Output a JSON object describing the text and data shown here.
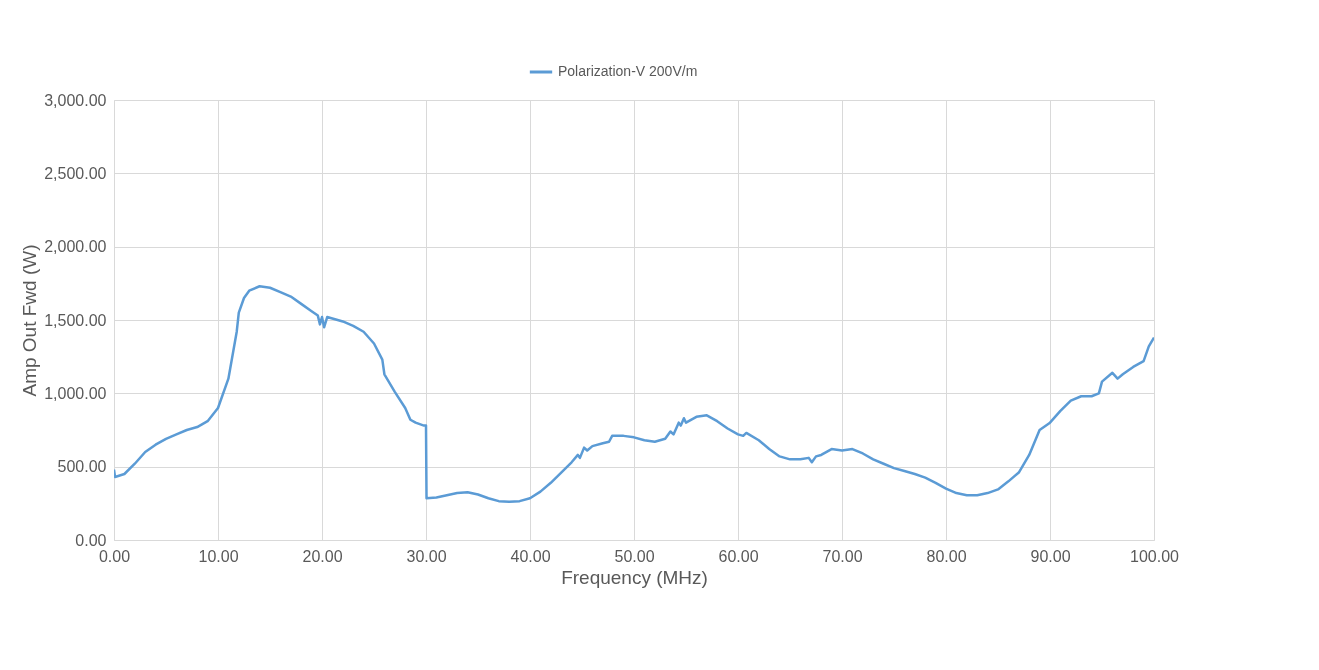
{
  "chart_data": {
    "type": "line",
    "xlabel": "Frequency (MHz)",
    "ylabel": "Amp Out Fwd (W)",
    "xlim": [
      0,
      100
    ],
    "xticks": [
      {
        "value": 0,
        "label": "0.00"
      },
      {
        "value": 10,
        "label": "10.00"
      },
      {
        "value": 20,
        "label": "20.00"
      },
      {
        "value": 30,
        "label": "30.00"
      },
      {
        "value": 40,
        "label": "40.00"
      },
      {
        "value": 50,
        "label": "50.00"
      },
      {
        "value": 60,
        "label": "60.00"
      },
      {
        "value": 70,
        "label": "70.00"
      },
      {
        "value": 80,
        "label": "80.00"
      },
      {
        "value": 90,
        "label": "90.00"
      },
      {
        "value": 100,
        "label": "100.00"
      }
    ],
    "ylim": [
      0,
      3000
    ],
    "yticks": [
      {
        "value": 0,
        "label": "0.00"
      },
      {
        "value": 500,
        "label": "500.00"
      },
      {
        "value": 1000,
        "label": "1,000.00"
      },
      {
        "value": 1500,
        "label": "1,500.00"
      },
      {
        "value": 2000,
        "label": "2,000.00"
      },
      {
        "value": 2500,
        "label": "2,500.00"
      },
      {
        "value": 3000,
        "label": "3,000.00"
      }
    ],
    "grid": true,
    "legend": "top",
    "marker": "none",
    "line_style": "solid",
    "x": [
      0,
      0.1,
      1,
      2,
      3,
      4,
      5,
      6,
      7,
      8,
      9,
      10,
      11,
      11.8,
      12,
      12.5,
      13,
      14,
      15,
      16,
      17,
      18,
      19,
      19.6,
      19.8,
      20,
      20.2,
      20.5,
      21,
      22,
      23,
      24,
      25,
      25.8,
      26,
      27,
      28,
      28.5,
      29,
      29.8,
      30,
      30.05,
      31,
      32,
      33,
      34,
      35,
      36,
      37,
      38,
      39,
      40,
      41,
      42,
      43,
      44,
      44.6,
      44.8,
      45.2,
      45.5,
      46,
      47,
      47.6,
      47.9,
      49,
      50,
      51,
      52,
      53,
      53.5,
      53.8,
      54.3,
      54.5,
      54.8,
      55,
      56,
      57,
      58,
      59,
      60,
      60.5,
      60.8,
      62,
      63,
      64,
      65,
      66,
      66.8,
      67.1,
      67.5,
      68,
      69,
      70,
      71,
      72,
      73,
      74,
      75,
      76,
      77,
      78,
      79,
      80,
      81,
      82,
      83,
      84,
      85,
      86,
      87,
      88,
      89,
      90,
      91,
      92,
      93,
      94,
      94.7,
      95,
      96,
      96.5,
      97,
      98,
      99,
      99.5,
      100
    ],
    "series": [
      {
        "name": "Polarization-V 200V/m",
        "color": "#5b9bd5",
        "values": [
          480,
          430,
          450,
          520,
          600,
          650,
          690,
          720,
          750,
          770,
          810,
          900,
          1100,
          1420,
          1550,
          1650,
          1700,
          1730,
          1720,
          1690,
          1660,
          1610,
          1560,
          1530,
          1470,
          1520,
          1450,
          1520,
          1510,
          1490,
          1460,
          1420,
          1340,
          1230,
          1130,
          1010,
          900,
          820,
          800,
          780,
          780,
          285,
          290,
          305,
          320,
          325,
          310,
          285,
          265,
          260,
          265,
          285,
          330,
          390,
          460,
          530,
          580,
          560,
          630,
          610,
          640,
          660,
          670,
          710,
          710,
          700,
          680,
          670,
          690,
          740,
          720,
          800,
          780,
          830,
          800,
          840,
          850,
          810,
          760,
          720,
          710,
          730,
          680,
          620,
          570,
          550,
          550,
          560,
          530,
          570,
          580,
          620,
          610,
          620,
          590,
          550,
          520,
          490,
          470,
          450,
          425,
          390,
          350,
          320,
          305,
          305,
          320,
          345,
          400,
          460,
          580,
          750,
          800,
          880,
          950,
          980,
          980,
          1000,
          1080,
          1140,
          1100,
          1130,
          1180,
          1220,
          1320,
          1380
        ]
      }
    ]
  }
}
